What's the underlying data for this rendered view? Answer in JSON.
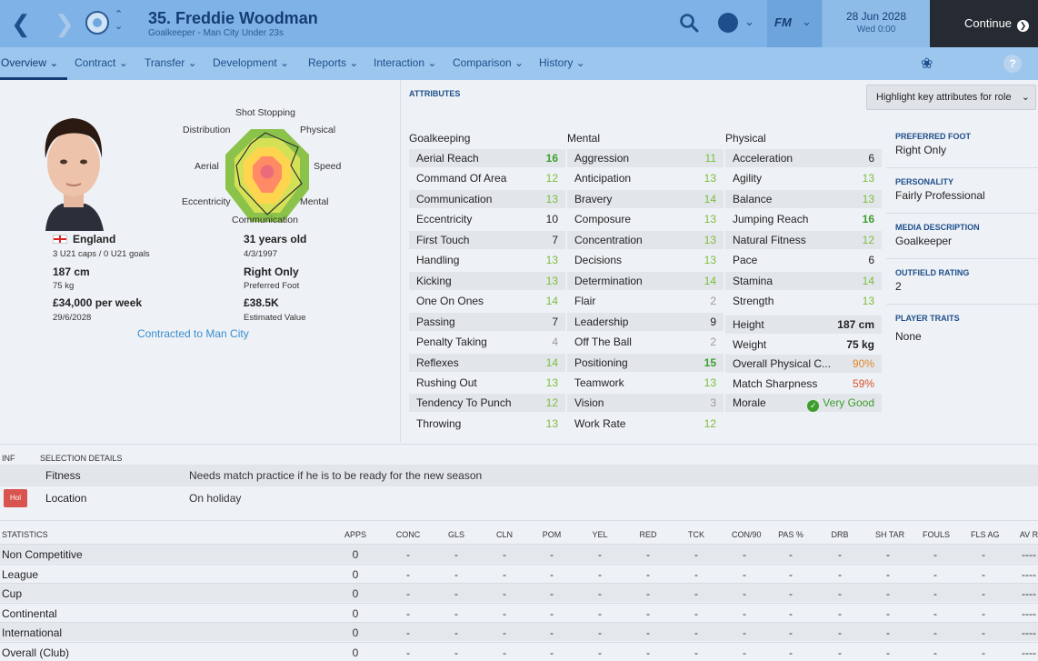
{
  "header": {
    "player_title": "35. Freddie Woodman",
    "player_subtitle": "Goalkeeper - Man City Under 23s",
    "fm_logo": "FM",
    "date_main": "28 Jun 2028",
    "date_sub": "Wed 0:00",
    "continue_label": "Continue"
  },
  "menu": [
    "Overview",
    "Contract",
    "Transfer",
    "Development",
    "Reports",
    "Interaction",
    "Comparison",
    "History"
  ],
  "help_label": "?",
  "profile": {
    "nationality": "England",
    "caps": "3 U21 caps / 0 U21 goals",
    "height": "187 cm",
    "weight": "75 kg",
    "wage": "£34,000 per week",
    "contract_end": "29/6/2028",
    "age": "31 years old",
    "dob": "4/3/1997",
    "foot_value": "Right Only",
    "foot_label": "Preferred Foot",
    "value": "£38.5K",
    "value_label": "Estimated Value",
    "contracted": "Contracted to Man City"
  },
  "radar": {
    "labels": [
      "Shot Stopping",
      "Physical",
      "Speed",
      "Mental",
      "Communication",
      "Eccentricity",
      "Aerial",
      "Distribution"
    ]
  },
  "attributes": {
    "heading": "ATTRIBUTES",
    "highlight_label": "Highlight key attributes for role",
    "goalkeeping_title": "Goalkeeping",
    "mental_title": "Mental",
    "physical_title": "Physical",
    "goalkeeping": [
      {
        "name": "Aerial Reach",
        "value": "16"
      },
      {
        "name": "Command Of Area",
        "value": "12"
      },
      {
        "name": "Communication",
        "value": "13"
      },
      {
        "name": "Eccentricity",
        "value": "10"
      },
      {
        "name": "First Touch",
        "value": "7"
      },
      {
        "name": "Handling",
        "value": "13"
      },
      {
        "name": "Kicking",
        "value": "13"
      },
      {
        "name": "One On Ones",
        "value": "14"
      },
      {
        "name": "Passing",
        "value": "7"
      },
      {
        "name": "Penalty Taking",
        "value": "4"
      },
      {
        "name": "Reflexes",
        "value": "14"
      },
      {
        "name": "Rushing Out",
        "value": "13"
      },
      {
        "name": "Tendency To Punch",
        "value": "12"
      },
      {
        "name": "Throwing",
        "value": "13"
      }
    ],
    "mental": [
      {
        "name": "Aggression",
        "value": "11"
      },
      {
        "name": "Anticipation",
        "value": "13"
      },
      {
        "name": "Bravery",
        "value": "14"
      },
      {
        "name": "Composure",
        "value": "13"
      },
      {
        "name": "Concentration",
        "value": "13"
      },
      {
        "name": "Decisions",
        "value": "13"
      },
      {
        "name": "Determination",
        "value": "14"
      },
      {
        "name": "Flair",
        "value": "2"
      },
      {
        "name": "Leadership",
        "value": "9"
      },
      {
        "name": "Off The Ball",
        "value": "2"
      },
      {
        "name": "Positioning",
        "value": "15"
      },
      {
        "name": "Teamwork",
        "value": "13"
      },
      {
        "name": "Vision",
        "value": "3"
      },
      {
        "name": "Work Rate",
        "value": "12"
      }
    ],
    "physical": [
      {
        "name": "Acceleration",
        "value": "6"
      },
      {
        "name": "Agility",
        "value": "13"
      },
      {
        "name": "Balance",
        "value": "13"
      },
      {
        "name": "Jumping Reach",
        "value": "16"
      },
      {
        "name": "Natural Fitness",
        "value": "12"
      },
      {
        "name": "Pace",
        "value": "6"
      },
      {
        "name": "Stamina",
        "value": "14"
      },
      {
        "name": "Strength",
        "value": "13"
      }
    ],
    "extra": [
      {
        "name": "Height",
        "value": "187 cm"
      },
      {
        "name": "Weight",
        "value": "75 kg"
      },
      {
        "name": "Overall Physical C...",
        "value": "90%"
      },
      {
        "name": "Match Sharpness",
        "value": "59%"
      },
      {
        "name": "Morale",
        "value": "Very Good"
      }
    ]
  },
  "side": {
    "foot_label": "PREFERRED FOOT",
    "foot_value": "Right Only",
    "personality_label": "PERSONALITY",
    "personality_value": "Fairly Professional",
    "media_label": "MEDIA DESCRIPTION",
    "media_value": "Goalkeeper",
    "outfield_label": "OUTFIELD RATING",
    "outfield_value": "2",
    "traits_label": "PLAYER TRAITS",
    "traits_value": "None"
  },
  "selection": {
    "inf_label": "INF",
    "heading": "SELECTION DETAILS",
    "fitness_label": "Fitness",
    "fitness_value": "Needs match practice if he is to be ready for the new season",
    "location_badge": "Hol",
    "location_label": "Location",
    "location_value": "On holiday"
  },
  "stats": {
    "heading": "STATISTICS",
    "columns": [
      "APPS",
      "CONC",
      "GLS",
      "CLN",
      "POM",
      "YEL",
      "RED",
      "TCK",
      "CON/90",
      "PAS %",
      "DRB",
      "SH TAR",
      "FOULS",
      "FLS AG",
      "AV R"
    ],
    "rows": [
      {
        "name": "Non Competitive",
        "apps": "0",
        "rest": "-",
        "last": "----"
      },
      {
        "name": "League",
        "apps": "0",
        "rest": "-",
        "last": "----"
      },
      {
        "name": "Cup",
        "apps": "0",
        "rest": "-",
        "last": "----"
      },
      {
        "name": "Continental",
        "apps": "0",
        "rest": "-",
        "last": "----"
      },
      {
        "name": "International",
        "apps": "0",
        "rest": "-",
        "last": "----"
      },
      {
        "name": "Overall (Club)",
        "apps": "0",
        "rest": "-",
        "last": "----"
      }
    ]
  },
  "colors": {
    "accent": "#7fb2e6",
    "good": "#3d9e2c",
    "dark_button": "#262b33"
  }
}
